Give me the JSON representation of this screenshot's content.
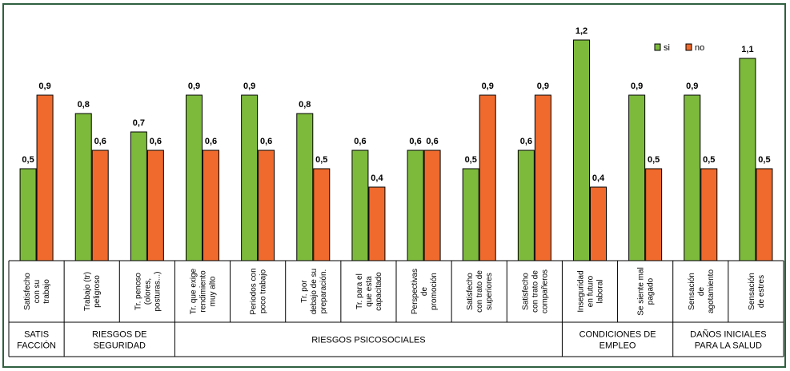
{
  "chart_data": {
    "type": "bar",
    "categories": [
      "Satisfecho con su trabajo",
      "Trabajo (tr) peligroso",
      "Tr. penoso (olores, posturas...)",
      "Tr. que exige rendimiento muy alto",
      "Periodos con poco trabajo",
      "Tr. por debajo de su preparación.",
      "Tr. para el que esta capacitado",
      "Perspectivas de promoción",
      "Satisfecho con trato de superiores",
      "Satisfecho con trato de compañeros",
      "Inseguridad en futuro laboral",
      "Se siente mal pagado",
      "Sensación de agotamiento",
      "Sensación de estres"
    ],
    "category_lines": [
      [
        "Satisfecho",
        "con su",
        "trabajo"
      ],
      [
        "Trabajo (tr)",
        "peligroso"
      ],
      [
        "Tr. penoso",
        "(olores,",
        "posturas...)"
      ],
      [
        "Tr. que exige",
        "rendimiento",
        "muy alto"
      ],
      [
        "Periodos con",
        "poco trabajo"
      ],
      [
        "Tr. por",
        "debajo de su",
        "preparación."
      ],
      [
        "Tr. para el",
        "que esta",
        "capacitado"
      ],
      [
        "Perspectivas",
        "de",
        "promoción"
      ],
      [
        "Satisfecho",
        "con trato de",
        "superiores"
      ],
      [
        "Satisfecho",
        "con trato de",
        "compañeros"
      ],
      [
        "Inseguridad",
        "en futuro",
        "laboral"
      ],
      [
        "Se siente mal",
        "pagado"
      ],
      [
        "Sensación",
        "de",
        "agotamiento"
      ],
      [
        "Sensación",
        "de estres"
      ]
    ],
    "series": [
      {
        "name": "si",
        "color": "#7dba3c",
        "values": [
          0.5,
          0.8,
          0.7,
          0.9,
          0.9,
          0.8,
          0.6,
          0.6,
          0.5,
          0.6,
          1.2,
          0.9,
          0.9,
          1.1
        ]
      },
      {
        "name": "no",
        "color": "#ef6a2c",
        "values": [
          0.9,
          0.6,
          0.6,
          0.6,
          0.6,
          0.5,
          0.4,
          0.6,
          0.9,
          0.9,
          0.4,
          0.5,
          0.5,
          0.5
        ]
      }
    ],
    "value_labels": {
      "si": [
        "0,5",
        "0,8",
        "0,7",
        "0,9",
        "0,9",
        "0,8",
        "0,6",
        "0,6",
        "0,5",
        "0,6",
        "1,2",
        "0,9",
        "0,9",
        "1,1"
      ],
      "no": [
        "0,9",
        "0,6",
        "0,6",
        "0,6",
        "0,6",
        "0,5",
        "0,4",
        "0,6",
        "0,9",
        "0,9",
        "0,4",
        "0,5",
        "0,5",
        "0,5"
      ]
    },
    "groups": [
      {
        "label_lines": [
          "SATIS",
          "FACCIÓN"
        ],
        "start": 0,
        "count": 1
      },
      {
        "label_lines": [
          "RIESGOS DE",
          "SEGURIDAD"
        ],
        "start": 1,
        "count": 2
      },
      {
        "label_lines": [
          "RIESGOS PSICOSOCIALES"
        ],
        "start": 3,
        "count": 7
      },
      {
        "label_lines": [
          "CONDICIONES DE",
          "EMPLEO"
        ],
        "start": 10,
        "count": 2
      },
      {
        "label_lines": [
          "DAÑOS INICIALES",
          "PARA LA SALUD"
        ],
        "start": 12,
        "count": 2
      }
    ],
    "ylim": [
      0,
      1.3
    ],
    "legend_position": "top-right",
    "grid": false
  }
}
